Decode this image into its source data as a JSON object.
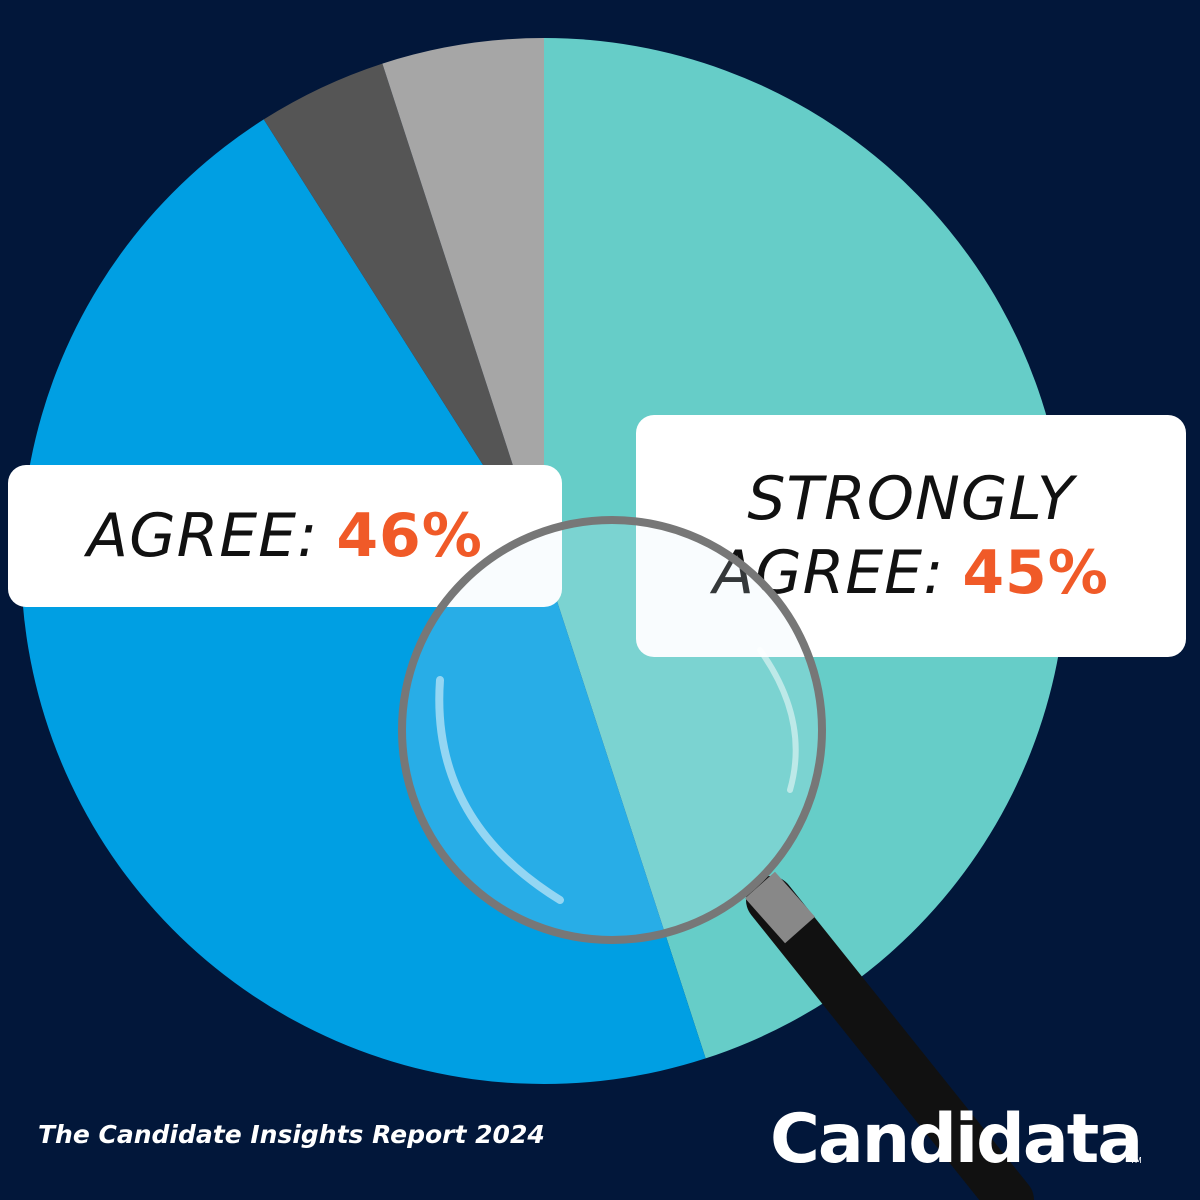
{
  "chart_data": {
    "type": "pie",
    "categories": [
      "STRONGLY AGREE:",
      "AGREE:",
      null,
      null
    ],
    "values": [
      45,
      46,
      4,
      5
    ],
    "value_labels": [
      "45%",
      "46%",
      null,
      null
    ],
    "colors": [
      "#66cdc8",
      "#009fe3",
      "#555555",
      "#a6a6a6"
    ],
    "footer": "The Candidate Insights Report 2024",
    "logo": "Candidata",
    "trademark": "TM"
  }
}
